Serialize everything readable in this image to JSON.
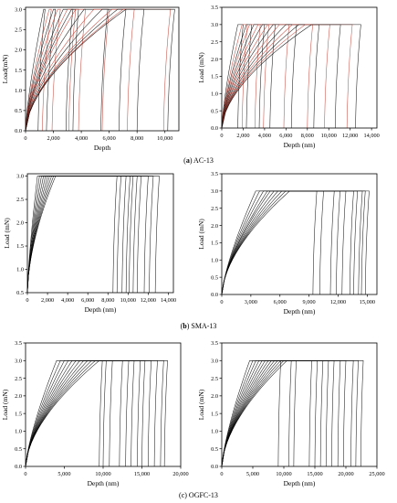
{
  "figure": {
    "captions": [
      {
        "prefix": "(",
        "letter": "a",
        "suffix": ") AC-13"
      },
      {
        "prefix": "(",
        "letter": "b",
        "suffix": ") SMA-13"
      },
      {
        "prefix": "",
        "letter": "",
        "suffix": "(c) OGFC-13"
      }
    ]
  },
  "chart_data": [
    {
      "id": "ac13-left",
      "type": "line",
      "xlabel": "Depth",
      "ylabel": "Load(mN)",
      "xlim": [
        0,
        11000
      ],
      "ylim": [
        0,
        3.05
      ],
      "xticks": [
        0,
        2000,
        4000,
        6000,
        8000,
        10000
      ],
      "xtick_labels": [
        "0",
        "2,000",
        "4,000",
        "6,000",
        "8,000",
        "10,000"
      ],
      "yticks": [
        0,
        0.5,
        1.0,
        1.5,
        2.0,
        2.5,
        3.0
      ],
      "ytick_labels": [
        "0.0",
        "0.5",
        "1.0",
        "1.5",
        "2.0",
        "2.5",
        "3.0"
      ],
      "peak_load": 3.0,
      "curve_colors": [
        "#000000",
        "#c0392b"
      ],
      "series": [
        {
          "max_depth": 1300,
          "hold_end": 1400,
          "residual": 900
        },
        {
          "max_depth": 1700,
          "hold_end": 1850,
          "residual": 1200
        },
        {
          "max_depth": 2000,
          "hold_end": 2150,
          "residual": 1500
        },
        {
          "max_depth": 2300,
          "hold_end": 2500,
          "residual": 1900
        },
        {
          "max_depth": 2700,
          "hold_end": 3400,
          "residual": 2900
        },
        {
          "max_depth": 3000,
          "hold_end": 3600,
          "residual": 3100
        },
        {
          "max_depth": 3300,
          "hold_end": 3800,
          "residual": 3400
        },
        {
          "max_depth": 3600,
          "hold_end": 4300,
          "residual": 3800
        },
        {
          "max_depth": 4200,
          "hold_end": 5900,
          "residual": 5400
        },
        {
          "max_depth": 4900,
          "hold_end": 6000,
          "residual": 5500
        },
        {
          "max_depth": 5500,
          "hold_end": 7200,
          "residual": 6700
        },
        {
          "max_depth": 6200,
          "hold_end": 7800,
          "residual": 7300
        },
        {
          "max_depth": 6600,
          "hold_end": 8500,
          "residual": 8000
        },
        {
          "max_depth": 7000,
          "hold_end": 10400,
          "residual": 9900
        },
        {
          "max_depth": 7200,
          "hold_end": 10700,
          "residual": 10200
        }
      ]
    },
    {
      "id": "ac13-right",
      "type": "line",
      "xlabel": "Depth (nm)",
      "ylabel": "Load (mN)",
      "xlim": [
        0,
        14500
      ],
      "ylim": [
        0,
        3.5
      ],
      "xticks": [
        0,
        2000,
        4000,
        6000,
        8000,
        10000,
        12000,
        14000
      ],
      "xtick_labels": [
        "0",
        "2,000",
        "4,000",
        "6,000",
        "8,000",
        "10,000",
        "12,000",
        "14,000"
      ],
      "yticks": [
        0,
        0.5,
        1.0,
        1.5,
        2.0,
        2.5,
        3.0,
        3.5
      ],
      "ytick_labels": [
        "0.0",
        "0.5",
        "1.0",
        "1.5",
        "2.0",
        "2.5",
        "3.0",
        "3.5"
      ],
      "peak_load": 3.0,
      "curve_colors": [
        "#000000",
        "#c0392b"
      ],
      "series": [
        {
          "max_depth": 1500,
          "hold_end": 2000,
          "residual": 1500
        },
        {
          "max_depth": 1900,
          "hold_end": 2400,
          "residual": 1900
        },
        {
          "max_depth": 2300,
          "hold_end": 2800,
          "residual": 2300
        },
        {
          "max_depth": 2600,
          "hold_end": 3600,
          "residual": 3100
        },
        {
          "max_depth": 3000,
          "hold_end": 4000,
          "residual": 3500
        },
        {
          "max_depth": 3400,
          "hold_end": 4400,
          "residual": 3900
        },
        {
          "max_depth": 3800,
          "hold_end": 5000,
          "residual": 4500
        },
        {
          "max_depth": 4300,
          "hold_end": 6300,
          "residual": 5800
        },
        {
          "max_depth": 4800,
          "hold_end": 7000,
          "residual": 6500
        },
        {
          "max_depth": 5400,
          "hold_end": 8500,
          "residual": 8000
        },
        {
          "max_depth": 6000,
          "hold_end": 9100,
          "residual": 8600
        },
        {
          "max_depth": 6600,
          "hold_end": 10100,
          "residual": 9600
        },
        {
          "max_depth": 7200,
          "hold_end": 11100,
          "residual": 10600
        },
        {
          "max_depth": 7800,
          "hold_end": 12200,
          "residual": 11700
        },
        {
          "max_depth": 8400,
          "hold_end": 13000,
          "residual": 12500
        }
      ]
    },
    {
      "id": "sma13-left",
      "type": "line",
      "xlabel": "Depth (nm)",
      "ylabel": "Load (mN)",
      "xlim": [
        0,
        14500
      ],
      "ylim": [
        0.5,
        3.05
      ],
      "xticks": [
        0,
        2000,
        4000,
        6000,
        8000,
        10000,
        12000,
        14000
      ],
      "xtick_labels": [
        "0",
        "2,000",
        "4,000",
        "6,000",
        "8,000",
        "10,000",
        "12,000",
        "14,000"
      ],
      "yticks": [
        0.5,
        1.0,
        1.5,
        2.0,
        2.5,
        3.0
      ],
      "ytick_labels": [
        "0.5",
        "1.0",
        "1.5",
        "2.0",
        "2.5",
        "3.0"
      ],
      "peak_load": 3.0,
      "curve_colors": [
        "#000000"
      ],
      "series": [
        {
          "max_depth": 1000,
          "hold_end": 8900,
          "residual": 8500
        },
        {
          "max_depth": 1200,
          "hold_end": 9300,
          "residual": 8900
        },
        {
          "max_depth": 1400,
          "hold_end": 9800,
          "residual": 9400
        },
        {
          "max_depth": 1600,
          "hold_end": 10200,
          "residual": 9800
        },
        {
          "max_depth": 1800,
          "hold_end": 10500,
          "residual": 10100
        },
        {
          "max_depth": 2000,
          "hold_end": 10900,
          "residual": 10500
        },
        {
          "max_depth": 2200,
          "hold_end": 11300,
          "residual": 10900
        },
        {
          "max_depth": 2400,
          "hold_end": 12000,
          "residual": 11600
        },
        {
          "max_depth": 2600,
          "hold_end": 12500,
          "residual": 12100
        },
        {
          "max_depth": 2800,
          "hold_end": 13100,
          "residual": 12700
        }
      ]
    },
    {
      "id": "sma13-right",
      "type": "line",
      "xlabel": "Depth (nm)",
      "ylabel": "Load (mN)",
      "xlim": [
        0,
        16000
      ],
      "ylim": [
        0,
        3.5
      ],
      "xticks": [
        0,
        3000,
        6000,
        9000,
        12000,
        15000
      ],
      "xtick_labels": [
        "0",
        "3,000",
        "6,000",
        "9,000",
        "12,000",
        "15,000"
      ],
      "yticks": [
        0,
        0.5,
        1.0,
        1.5,
        2.0,
        2.5,
        3.0,
        3.5
      ],
      "ytick_labels": [
        "0.0",
        "0.5",
        "1.0",
        "1.5",
        "2.0",
        "2.5",
        "3.0",
        "3.5"
      ],
      "peak_load": 3.0,
      "curve_colors": [
        "#000000"
      ],
      "series": [
        {
          "max_depth": 3500,
          "hold_end": 9800,
          "residual": 9400
        },
        {
          "max_depth": 3900,
          "hold_end": 10500,
          "residual": 10100
        },
        {
          "max_depth": 4300,
          "hold_end": 11600,
          "residual": 11200
        },
        {
          "max_depth": 4700,
          "hold_end": 12200,
          "residual": 11800
        },
        {
          "max_depth": 5000,
          "hold_end": 12800,
          "residual": 12400
        },
        {
          "max_depth": 5400,
          "hold_end": 13600,
          "residual": 13200
        },
        {
          "max_depth": 5800,
          "hold_end": 14000,
          "residual": 13600
        },
        {
          "max_depth": 6200,
          "hold_end": 14500,
          "residual": 14100
        },
        {
          "max_depth": 6600,
          "hold_end": 14800,
          "residual": 14400
        },
        {
          "max_depth": 7000,
          "hold_end": 15200,
          "residual": 14800
        }
      ]
    },
    {
      "id": "ogfc13-left",
      "type": "line",
      "xlabel": "Depth (nm)",
      "ylabel": "Load (mN)",
      "xlim": [
        0,
        20000
      ],
      "ylim": [
        0,
        3.5
      ],
      "xticks": [
        0,
        5000,
        10000,
        15000,
        20000
      ],
      "xtick_labels": [
        "0",
        "5,000",
        "10,000",
        "15,000",
        "20,000"
      ],
      "yticks": [
        0,
        0.5,
        1.0,
        1.5,
        2.0,
        2.5,
        3.0,
        3.5
      ],
      "ytick_labels": [
        "0.0",
        "0.5",
        "1.0",
        "1.5",
        "2.0",
        "2.5",
        "3.0",
        "3.5"
      ],
      "peak_load": 3.0,
      "curve_colors": [
        "#000000"
      ],
      "series": [
        {
          "max_depth": 4000,
          "hold_end": 9900,
          "residual": 9500
        },
        {
          "max_depth": 4500,
          "hold_end": 10400,
          "residual": 10000
        },
        {
          "max_depth": 5000,
          "hold_end": 11200,
          "residual": 10800
        },
        {
          "max_depth": 5500,
          "hold_end": 12500,
          "residual": 12100
        },
        {
          "max_depth": 6000,
          "hold_end": 13300,
          "residual": 12900
        },
        {
          "max_depth": 6500,
          "hold_end": 14000,
          "residual": 13600
        },
        {
          "max_depth": 7000,
          "hold_end": 14800,
          "residual": 14400
        },
        {
          "max_depth": 7500,
          "hold_end": 15400,
          "residual": 15000
        },
        {
          "max_depth": 8000,
          "hold_end": 16200,
          "residual": 15800
        },
        {
          "max_depth": 8500,
          "hold_end": 17000,
          "residual": 16600
        },
        {
          "max_depth": 9000,
          "hold_end": 17800,
          "residual": 17400
        },
        {
          "max_depth": 9500,
          "hold_end": 18300,
          "residual": 17900
        }
      ]
    },
    {
      "id": "ogfc13-right",
      "type": "line",
      "xlabel": "Depth (nm)",
      "ylabel": "Load (mN)",
      "xlim": [
        0,
        25000
      ],
      "ylim": [
        0,
        3.5
      ],
      "xticks": [
        0,
        5000,
        10000,
        15000,
        20000,
        25000
      ],
      "xtick_labels": [
        "0",
        "5,000",
        "10,000",
        "15,000",
        "20,000",
        "25,000"
      ],
      "yticks": [
        0,
        0.5,
        1.0,
        1.5,
        2.0,
        2.5,
        3.0,
        3.5
      ],
      "ytick_labels": [
        "0.0",
        "0.5",
        "1.0",
        "1.5",
        "2.0",
        "2.5",
        "3.0",
        "3.5"
      ],
      "peak_load": 3.0,
      "curve_colors": [
        "#000000"
      ],
      "series": [
        {
          "max_depth": 4500,
          "hold_end": 9500,
          "residual": 9100
        },
        {
          "max_depth": 5000,
          "hold_end": 11200,
          "residual": 10800
        },
        {
          "max_depth": 5500,
          "hold_end": 12000,
          "residual": 11600
        },
        {
          "max_depth": 6000,
          "hold_end": 14500,
          "residual": 14100
        },
        {
          "max_depth": 6500,
          "hold_end": 15400,
          "residual": 15000
        },
        {
          "max_depth": 7000,
          "hold_end": 16300,
          "residual": 15900
        },
        {
          "max_depth": 7500,
          "hold_end": 17200,
          "residual": 16800
        },
        {
          "max_depth": 8000,
          "hold_end": 18100,
          "residual": 17700
        },
        {
          "max_depth": 8500,
          "hold_end": 19100,
          "residual": 18700
        },
        {
          "max_depth": 9000,
          "hold_end": 20000,
          "residual": 19600
        },
        {
          "max_depth": 9500,
          "hold_end": 21200,
          "residual": 20800
        },
        {
          "max_depth": 10000,
          "hold_end": 22000,
          "residual": 21600
        },
        {
          "max_depth": 10500,
          "hold_end": 22800,
          "residual": 22400
        }
      ]
    }
  ]
}
